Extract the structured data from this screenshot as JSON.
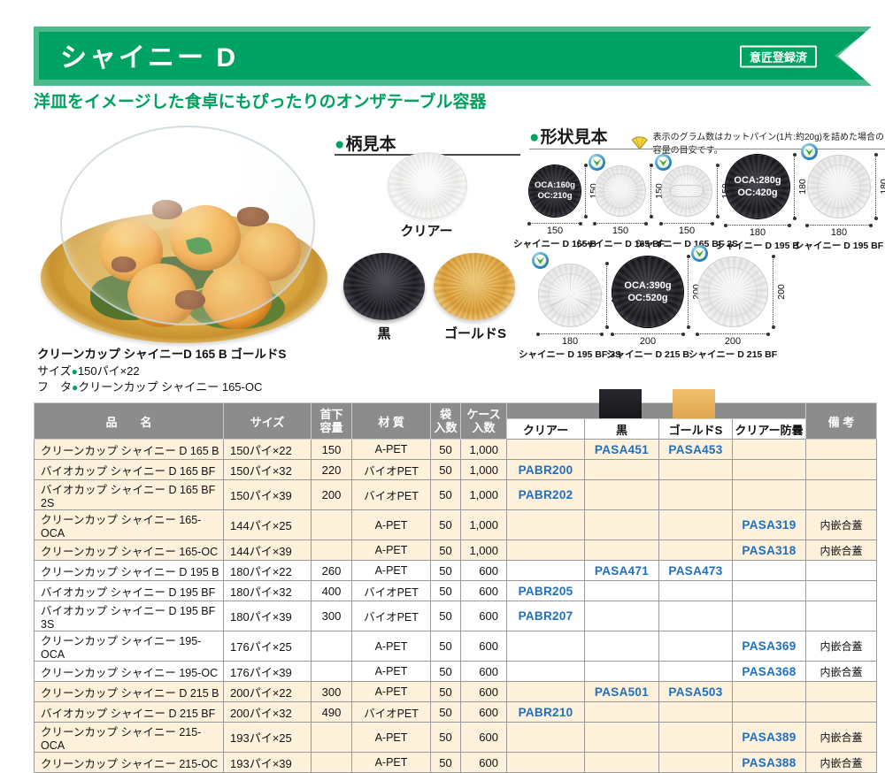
{
  "header": {
    "title": "シャイニー D",
    "badge": "意匠登録済",
    "subtitle": "洋皿をイメージした食卓にもぴったりのオンザテーブル容器"
  },
  "product_info": {
    "name": "クリーンカップ シャイニーD 165 B ゴールドS",
    "size_label": "サイズ",
    "size_value": "150パイ×22",
    "lid_label": "フ　タ",
    "lid_value": "クリーンカップ シャイニー 165-OC",
    "bullet": "●"
  },
  "pattern_samples": {
    "heading": "柄見本",
    "items": [
      {
        "label": "クリアー",
        "color_name": "clear"
      },
      {
        "label": "黒",
        "color_name": "black"
      },
      {
        "label": "ゴールドS",
        "color_name": "gold"
      }
    ]
  },
  "shape_samples": {
    "heading": "形状見本",
    "note": "表示のグラム数はカットパイン(1片:約20g)を詰めた場合の容量の目安です。",
    "items": [
      {
        "name": "シャイニー D 165 B",
        "width": "150",
        "height": "150",
        "style": "black",
        "cap1": "OCA:160g",
        "cap2": "OC:210g",
        "eco": false
      },
      {
        "name": "シャイニー D 165 BF",
        "width": "150",
        "height": "150",
        "style": "light",
        "eco": true
      },
      {
        "name": "シャイニー D 165 BF 2S",
        "width": "150",
        "height": "150",
        "style": "light-2s",
        "eco": true
      },
      {
        "name": "シャイニー D 195 B",
        "width": "180",
        "height": "180",
        "style": "black",
        "cap1": "OCA:280g",
        "cap2": "OC:420g",
        "eco": false
      },
      {
        "name": "シャイニー D 195 BF",
        "width": "180",
        "height": "180",
        "style": "light",
        "eco": true
      },
      {
        "name": "シャイニー D 195 BF 3S",
        "width": "180",
        "height": "180",
        "style": "light-3s",
        "eco": true
      },
      {
        "name": "シャイニー D 215 B",
        "width": "200",
        "height": "200",
        "style": "black",
        "cap1": "OCA:390g",
        "cap2": "OC:520g",
        "eco": false
      },
      {
        "name": "シャイニー D 215 BF",
        "width": "200",
        "height": "200",
        "style": "light",
        "eco": true
      }
    ]
  },
  "table": {
    "headers": {
      "name": "品　　名",
      "size": "サイズ",
      "capacity_top": "首下",
      "capacity_bottom": "容量",
      "material": "材 質",
      "bag_top": "袋",
      "bag_bottom": "入数",
      "case_top": "ケース",
      "case_bottom": "入数",
      "clear": "クリアー",
      "black": "黒",
      "gold": "ゴールドS",
      "clear_af": "クリアー防曇",
      "remarks": "備 考"
    },
    "rows": [
      {
        "group": "cream",
        "eco": false,
        "cells": [
          "クリーンカップ シャイニー D 165 B",
          "150パイ×22",
          "150",
          "A-PET",
          "50",
          "1,000",
          "",
          "PASA451",
          "PASA453",
          "",
          ""
        ]
      },
      {
        "group": "cream",
        "eco": true,
        "cells": [
          "バイオカップ シャイニー D 165 BF",
          "150パイ×32",
          "220",
          "バイオPET",
          "50",
          "1,000",
          "PABR200",
          "",
          "",
          "",
          ""
        ]
      },
      {
        "group": "cream",
        "eco": true,
        "cells": [
          "バイオカップ シャイニー D 165 BF 2S",
          "150パイ×39",
          "200",
          "バイオPET",
          "50",
          "1,000",
          "PABR202",
          "",
          "",
          "",
          ""
        ]
      },
      {
        "group": "cream",
        "eco": false,
        "cells": [
          "クリーンカップ シャイニー 165-OCA",
          "144パイ×25",
          "",
          "A-PET",
          "50",
          "1,000",
          "",
          "",
          "",
          "PASA319",
          "内嵌合蓋"
        ]
      },
      {
        "group": "cream",
        "eco": false,
        "cells": [
          "クリーンカップ シャイニー 165-OC",
          "144パイ×39",
          "",
          "A-PET",
          "50",
          "1,000",
          "",
          "",
          "",
          "PASA318",
          "内嵌合蓋"
        ]
      },
      {
        "group": "white",
        "eco": false,
        "cells": [
          "クリーンカップ シャイニー D 195 B",
          "180パイ×22",
          "260",
          "A-PET",
          "50",
          "600",
          "",
          "PASA471",
          "PASA473",
          "",
          ""
        ]
      },
      {
        "group": "white",
        "eco": true,
        "cells": [
          "バイオカップ シャイニー D 195 BF",
          "180パイ×32",
          "400",
          "バイオPET",
          "50",
          "600",
          "PABR205",
          "",
          "",
          "",
          ""
        ]
      },
      {
        "group": "white",
        "eco": true,
        "cells": [
          "バイオカップ シャイニー D 195 BF 3S",
          "180パイ×39",
          "300",
          "バイオPET",
          "50",
          "600",
          "PABR207",
          "",
          "",
          "",
          ""
        ]
      },
      {
        "group": "white",
        "eco": false,
        "cells": [
          "クリーンカップ シャイニー 195-OCA",
          "176パイ×25",
          "",
          "A-PET",
          "50",
          "600",
          "",
          "",
          "",
          "PASA369",
          "内嵌合蓋"
        ]
      },
      {
        "group": "white",
        "eco": false,
        "cells": [
          "クリーンカップ シャイニー 195-OC",
          "176パイ×39",
          "",
          "A-PET",
          "50",
          "600",
          "",
          "",
          "",
          "PASA368",
          "内嵌合蓋"
        ]
      },
      {
        "group": "cream",
        "eco": false,
        "cells": [
          "クリーンカップ シャイニー D 215 B",
          "200パイ×22",
          "300",
          "A-PET",
          "50",
          "600",
          "",
          "PASA501",
          "PASA503",
          "",
          ""
        ]
      },
      {
        "group": "cream",
        "eco": true,
        "cells": [
          "バイオカップ シャイニー D 215 BF",
          "200パイ×32",
          "490",
          "バイオPET",
          "50",
          "600",
          "PABR210",
          "",
          "",
          "",
          ""
        ]
      },
      {
        "group": "cream",
        "eco": false,
        "cells": [
          "クリーンカップ シャイニー 215-OCA",
          "193パイ×25",
          "",
          "A-PET",
          "50",
          "600",
          "",
          "",
          "",
          "PASA389",
          "内嵌合蓋"
        ]
      },
      {
        "group": "cream",
        "eco": false,
        "cells": [
          "クリーンカップ シャイニー 215-OC",
          "193パイ×39",
          "",
          "A-PET",
          "50",
          "600",
          "",
          "",
          "",
          "PASA388",
          "内嵌合蓋"
        ]
      }
    ]
  },
  "colors": {
    "accent_green": "#00a263",
    "light_green": "#4cba8b",
    "subtitle_green": "#00a05e",
    "header_gray": "#8c8c8c",
    "row_cream": "#fdf1dc",
    "code_blue": "#1e6fbe",
    "gold_swatch": "#e0a64f",
    "black_swatch": "#1d1d23"
  }
}
